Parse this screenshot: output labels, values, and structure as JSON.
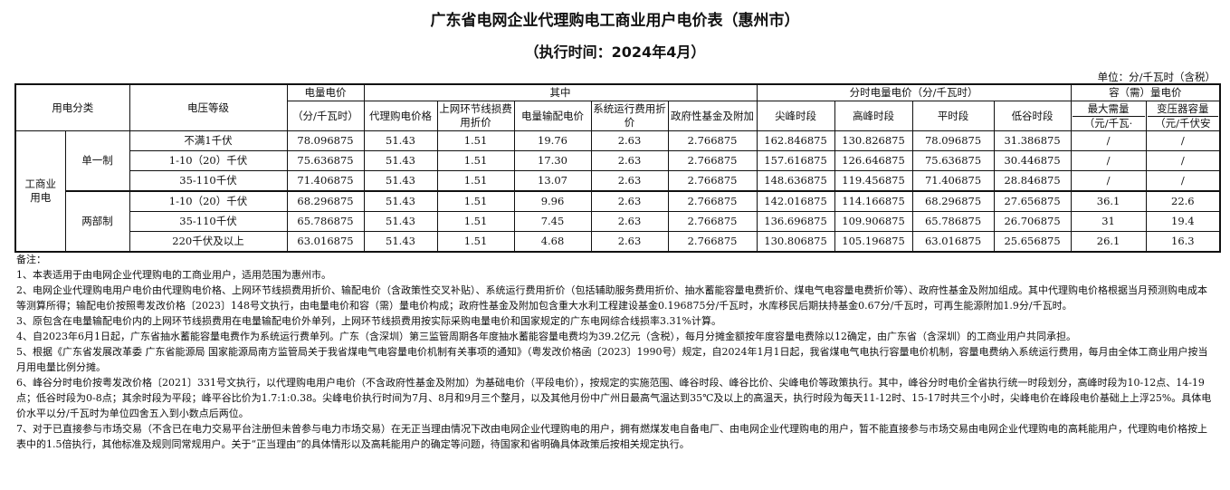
{
  "title": "广东省电网企业代理购电工商业用户电价表（惠州市）",
  "subtitle": "（执行时间：2024年4月）",
  "unit": "单位：分/千瓦时（含税）",
  "table": {
    "headers": {
      "category": "用电分类",
      "voltage": "电压等级",
      "energy_price": "电量电价",
      "energy_price_unit": "（分/千瓦时）",
      "among": "其中",
      "agent_price": "代理购电价格",
      "line_loss": "上网环节线损费用折价",
      "transmission": "电量输配电价",
      "system_cost": "系统运行费用折价",
      "gov_fund": "政府性基金及附加",
      "tou": "分时电量电价（分/千瓦时）",
      "sharp_peak": "尖峰时段",
      "peak": "高峰时段",
      "flat": "平时段",
      "valley": "低谷时段",
      "capacity": "容（需）量电价",
      "max_demand": "最大需量",
      "max_demand_unit": "（元/千瓦·",
      "transformer": "变压器容量",
      "transformer_unit": "（元/千伏安"
    },
    "group": "工商业用电",
    "systems": [
      "单一制",
      "两部制"
    ],
    "rows": [
      [
        "不满1千伏",
        "78.096875",
        "51.43",
        "1.51",
        "19.76",
        "2.63",
        "2.766875",
        "162.846875",
        "130.826875",
        "78.096875",
        "31.386875",
        "/",
        "/"
      ],
      [
        "1-10（20）千伏",
        "75.636875",
        "51.43",
        "1.51",
        "17.30",
        "2.63",
        "2.766875",
        "157.616875",
        "126.646875",
        "75.636875",
        "30.446875",
        "/",
        "/"
      ],
      [
        "35-110千伏",
        "71.406875",
        "51.43",
        "1.51",
        "13.07",
        "2.63",
        "2.766875",
        "148.636875",
        "119.456875",
        "71.406875",
        "28.846875",
        "/",
        "/"
      ],
      [
        "1-10（20）千伏",
        "68.296875",
        "51.43",
        "1.51",
        "9.96",
        "2.63",
        "2.766875",
        "142.016875",
        "114.166875",
        "68.296875",
        "27.656875",
        "36.1",
        "22.6"
      ],
      [
        "35-110千伏",
        "65.786875",
        "51.43",
        "1.51",
        "7.45",
        "2.63",
        "2.766875",
        "136.696875",
        "109.906875",
        "65.786875",
        "26.706875",
        "31",
        "19.4"
      ],
      [
        "220千伏及以上",
        "63.016875",
        "51.43",
        "1.51",
        "4.68",
        "2.63",
        "2.766875",
        "130.806875",
        "105.196875",
        "63.016875",
        "25.656875",
        "26.1",
        "16.3"
      ]
    ]
  },
  "notes": {
    "heading": "备注：",
    "items": [
      "1、本表适用于由电网企业代理购电的工商业用户，适用范围为惠州市。",
      "2、电网企业代理购电用户电价由代理购电价格、上网环节线损费用折价、输配电价（含政策性交叉补贴）、系统运行费用折价（包括辅助服务费用折价、抽水蓄能容量电费折价、煤电气电容量电费折价等）、政府性基金及附加组成。其中代理购电价格根据当月预测购电成本等测算所得；输配电价按照粤发改价格〔2023〕148号文执行，由电量电价和容（需）量电价构成；政府性基金及附加包含重大水利工程建设基金0.196875分/千瓦时，水库移民后期扶持基金0.67分/千瓦时，可再生能源附加1.9分/千瓦时。",
      "3、原包含在电量输配电价内的上网环节线损费用在电量输配电价外单列，上网环节线损费用按实际采购电量电价和国家规定的广东电网综合线损率3.31%计算。",
      "4、自2023年6月1日起，广东省抽水蓄能容量电费作为系统运行费单列。广东（含深圳）第三监管周期各年度抽水蓄能容量电费均为39.2亿元（含税），每月分摊金额按年度容量电费除以12确定，由广东省（含深圳）的工商业用户共同承担。",
      "5、根据《广东省发展改革委 广东省能源局 国家能源局南方监管局关于我省煤电气电容量电价机制有关事项的通知》（粤发改价格函〔2023〕1990号）规定，自2024年1月1日起，我省煤电气电执行容量电价机制，容量电费纳入系统运行费用，每月由全体工商业用户按当月用电量比例分摊。",
      "6、峰谷分时电价按粤发改价格〔2021〕331号文执行，以代理购电用户电价（不含政府性基金及附加）为基础电价（平段电价），按规定的实施范围、峰谷时段、峰谷比价、尖峰电价等政策执行。其中，峰谷分时电价全省执行统一时段划分，高峰时段为10-12点、14-19点；低谷时段为0-8点；其余时段为平段；峰平谷比价为1.7:1:0.38。尖峰电价执行时间为7月、8月和9月三个整月，以及其他月份中广州日最高气温达到35℃及以上的高温天，执行时段为每天11-12时、15-17时共三个小时，尖峰电价在峰段电价基础上上浮25%。具体电价水平以分/千瓦时为单位四舍五入到小数点后两位。",
      "7、对于已直接参与市场交易（不含已在电力交易平台注册但未曾参与电力市场交易）在无正当理由情况下改由电网企业代理购电的用户，拥有燃煤发电自备电厂、由电网企业代理购电的用户，暂不能直接参与市场交易由电网企业代理购电的高耗能用户，代理购电价格按上表中的1.5倍执行，其他标准及规则同常规用户。关于“正当理由”的具体情形以及高耗能用户的确定等问题，待国家和省明确具体政策后按相关规定执行。"
    ]
  }
}
